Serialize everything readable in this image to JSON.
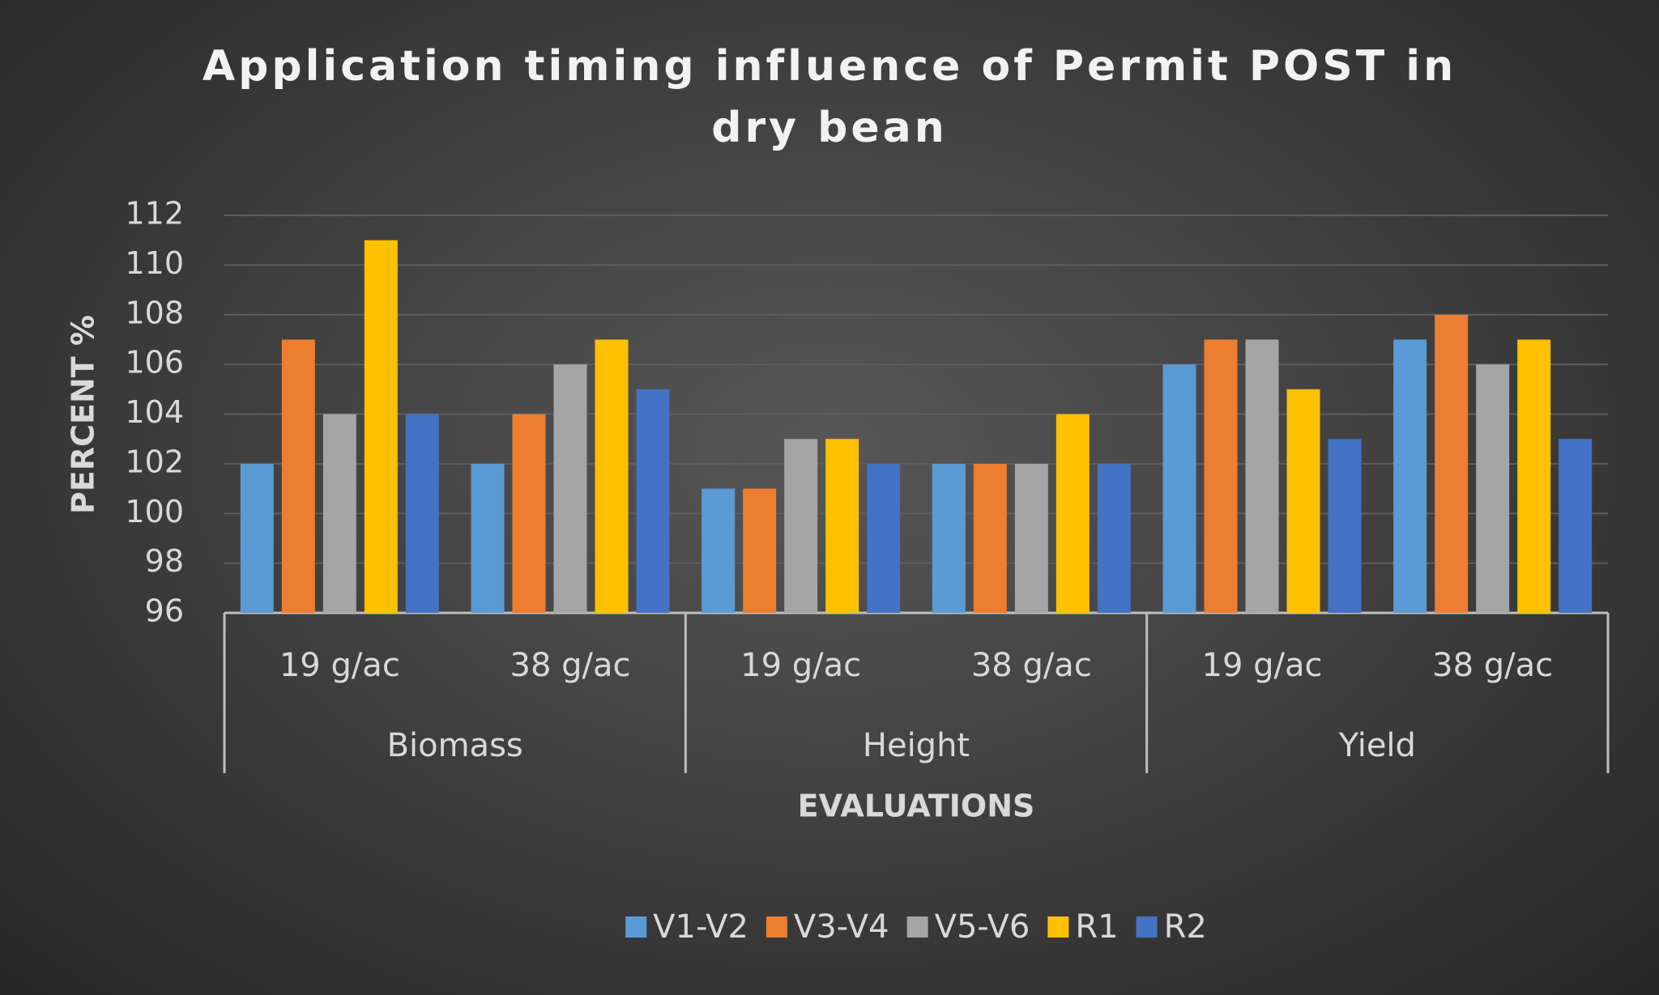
{
  "chart_data": {
    "type": "bar",
    "title": "Application timing influence of Permit POST in dry bean",
    "y_label": "PERCENT %",
    "x_label": "EVALUATIONS",
    "category_groups": [
      "Biomass",
      "Height",
      "Yield"
    ],
    "categories": [
      "19 g/ac",
      "38 g/ac",
      "19 g/ac",
      "38 g/ac",
      "19 g/ac",
      "38 g/ac"
    ],
    "series": [
      {
        "name": "V1-V2",
        "color": "#5b9bd5",
        "values": [
          102,
          102,
          101,
          102,
          106,
          107
        ]
      },
      {
        "name": "V3-V4",
        "color": "#ed7d31",
        "values": [
          107,
          104,
          101,
          102,
          107,
          108
        ]
      },
      {
        "name": "V5-V6",
        "color": "#a5a5a5",
        "values": [
          104,
          106,
          103,
          102,
          107,
          106
        ]
      },
      {
        "name": "R1",
        "color": "#ffc000",
        "values": [
          111,
          107,
          103,
          104,
          105,
          107
        ]
      },
      {
        "name": "R2",
        "color": "#4472c4",
        "values": [
          104,
          105,
          102,
          102,
          103,
          103
        ]
      }
    ],
    "ylim": [
      96,
      112
    ],
    "yticks": [
      96,
      98,
      100,
      102,
      104,
      106,
      108,
      110,
      112
    ],
    "grid": true,
    "legend": "bottom"
  }
}
